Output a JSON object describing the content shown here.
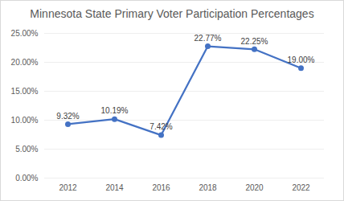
{
  "chart_data": {
    "type": "line",
    "title": "Minnesota State Primary Voter Participation Percentages",
    "categories": [
      "2012",
      "2014",
      "2016",
      "2018",
      "2020",
      "2022"
    ],
    "values": [
      9.32,
      10.19,
      7.42,
      22.77,
      22.25,
      19.0
    ],
    "value_labels": [
      "9.32%",
      "10.19%",
      "7.42%",
      "22.77%",
      "22.25%",
      "19.00%"
    ],
    "data_labels": true,
    "color": "#4472c4",
    "marker": "circle",
    "ylim": [
      0,
      25
    ],
    "yticks": [
      {
        "value": 0,
        "label": "0.00%"
      },
      {
        "value": 5,
        "label": "5.00%"
      },
      {
        "value": 10,
        "label": "10.00%"
      },
      {
        "value": 15,
        "label": "15.00%"
      },
      {
        "value": 20,
        "label": "20.00%"
      },
      {
        "value": 25,
        "label": "25.00%"
      }
    ],
    "grid": true
  }
}
